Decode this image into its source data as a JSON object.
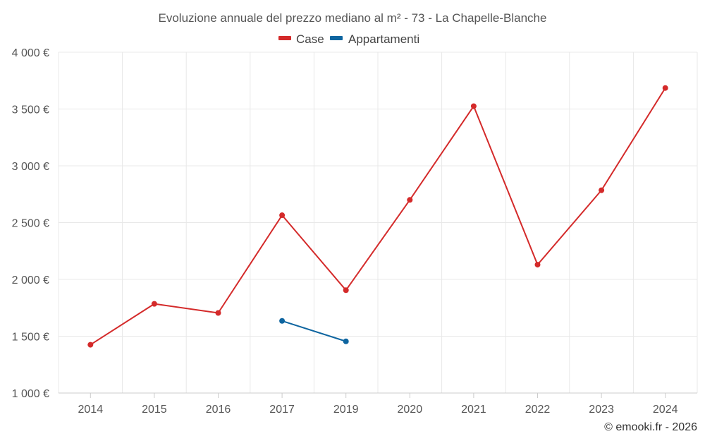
{
  "chart_data": {
    "type": "line",
    "title": "Evoluzione annuale del prezzo mediano al m² - 73 - La Chapelle-Blanche",
    "categories": [
      "2014",
      "2015",
      "2016",
      "2017",
      "2019",
      "2020",
      "2021",
      "2022",
      "2023",
      "2024"
    ],
    "ylim": [
      1000,
      4000
    ],
    "yticks": [
      1000,
      1500,
      2000,
      2500,
      3000,
      3500,
      4000
    ],
    "ytick_labels": [
      "1 000 €",
      "1 500 €",
      "2 000 €",
      "2 500 €",
      "3 000 €",
      "3 500 €",
      "4 000 €"
    ],
    "grid": true,
    "legend_position": "top-center",
    "series": [
      {
        "name": "Case",
        "color": "#d42a2a",
        "values": [
          1425,
          1785,
          1705,
          2565,
          1905,
          2700,
          3525,
          2130,
          2785,
          3685
        ]
      },
      {
        "name": "Appartamenti",
        "color": "#0e65a0",
        "values": [
          null,
          null,
          null,
          1635,
          1455,
          null,
          null,
          null,
          null,
          null
        ]
      }
    ]
  },
  "credit": "© emooki.fr - 2026"
}
